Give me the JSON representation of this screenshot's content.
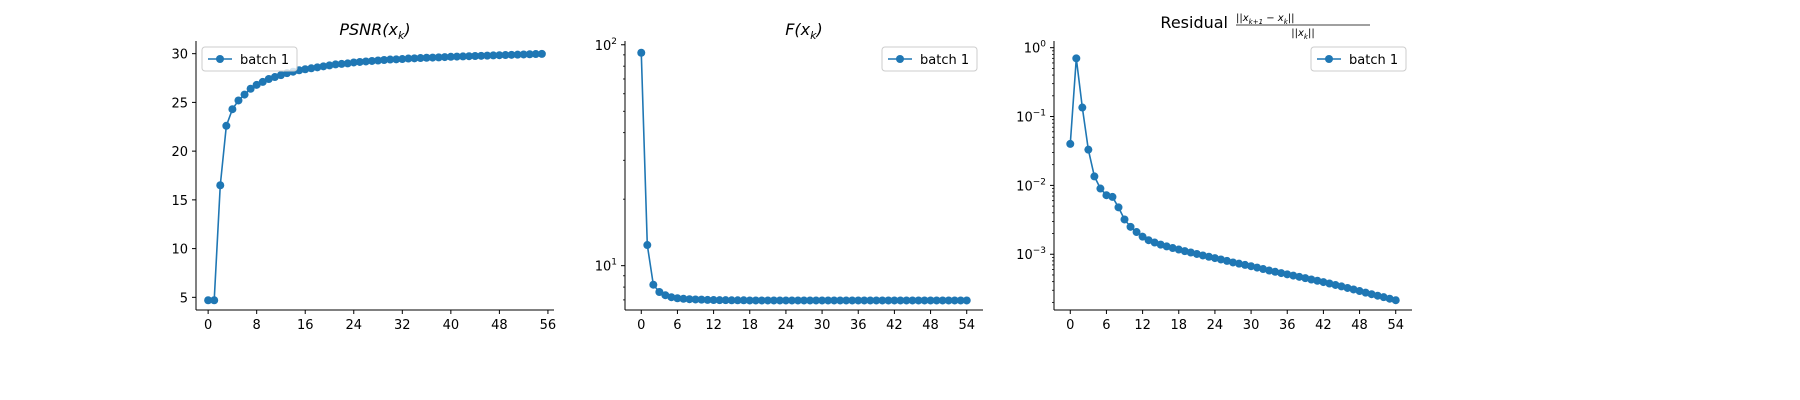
{
  "chart_data": [
    {
      "type": "line",
      "title": "PSNR(x_k)",
      "title_parts": {
        "main": "PSNR(x",
        "sub": "k",
        "close": ")"
      },
      "xlabel": "",
      "ylabel": "",
      "yscale": "linear",
      "xlim": [
        -2,
        57
      ],
      "ylim": [
        3.7,
        31.3
      ],
      "xticks": [
        0,
        8,
        16,
        24,
        32,
        40,
        48,
        56
      ],
      "yticks": [
        5,
        10,
        15,
        20,
        25,
        30
      ],
      "grid": false,
      "legend": {
        "position": "upper-left",
        "entries": [
          "batch 1"
        ]
      },
      "series": [
        {
          "name": "batch 1",
          "color": "#1f77b4",
          "x": [
            0,
            1,
            2,
            3,
            4,
            5,
            6,
            7,
            8,
            9,
            10,
            11,
            12,
            13,
            14,
            15,
            16,
            17,
            18,
            19,
            20,
            21,
            22,
            23,
            24,
            25,
            26,
            27,
            28,
            29,
            30,
            31,
            32,
            33,
            34,
            35,
            36,
            37,
            38,
            39,
            40,
            41,
            42,
            43,
            44,
            45,
            46,
            47,
            48,
            49,
            50,
            51,
            52,
            53,
            54,
            55
          ],
          "values": [
            4.7,
            4.7,
            16.5,
            22.6,
            24.3,
            25.2,
            25.8,
            26.4,
            26.8,
            27.1,
            27.4,
            27.6,
            27.8,
            28.0,
            28.15,
            28.3,
            28.4,
            28.5,
            28.6,
            28.7,
            28.8,
            28.9,
            28.95,
            29.0,
            29.1,
            29.15,
            29.2,
            29.25,
            29.3,
            29.35,
            29.4,
            29.42,
            29.45,
            29.5,
            29.52,
            29.55,
            29.58,
            29.6,
            29.62,
            29.65,
            29.68,
            29.7,
            29.72,
            29.74,
            29.76,
            29.78,
            29.8,
            29.82,
            29.84,
            29.86,
            29.88,
            29.9,
            29.92,
            29.94,
            29.96,
            29.98
          ]
        }
      ]
    },
    {
      "type": "line",
      "title": "F(x_k)",
      "title_parts": {
        "main": "F(x",
        "sub": "k",
        "close": ")"
      },
      "xlabel": "",
      "ylabel": "",
      "yscale": "log",
      "xlim": [
        -2.7,
        56.7
      ],
      "ylim": [
        6.3,
        104
      ],
      "xticks": [
        0,
        6,
        12,
        18,
        24,
        30,
        36,
        42,
        48,
        54
      ],
      "yticks_major": [
        {
          "value": 10,
          "base": "10",
          "exp": "1"
        },
        {
          "value": 100,
          "base": "10",
          "exp": "2"
        }
      ],
      "yticks_minor": [
        7,
        8,
        9,
        20,
        30,
        40,
        50,
        60,
        70,
        80,
        90
      ],
      "grid": false,
      "legend": {
        "position": "upper-right",
        "entries": [
          "batch 1"
        ]
      },
      "series": [
        {
          "name": "batch 1",
          "color": "#1f77b4",
          "x": [
            0,
            1,
            2,
            3,
            4,
            5,
            6,
            7,
            8,
            9,
            10,
            11,
            12,
            13,
            14,
            15,
            16,
            17,
            18,
            19,
            20,
            21,
            22,
            23,
            24,
            25,
            26,
            27,
            28,
            29,
            30,
            31,
            32,
            33,
            34,
            35,
            36,
            37,
            38,
            39,
            40,
            41,
            42,
            43,
            44,
            45,
            46,
            47,
            48,
            49,
            50,
            51,
            52,
            53,
            54
          ],
          "values": [
            92,
            12.4,
            8.2,
            7.6,
            7.35,
            7.2,
            7.12,
            7.08,
            7.05,
            7.03,
            7.02,
            7.0,
            6.99,
            6.98,
            6.98,
            6.97,
            6.97,
            6.97,
            6.96,
            6.96,
            6.96,
            6.96,
            6.96,
            6.96,
            6.96,
            6.96,
            6.96,
            6.96,
            6.96,
            6.96,
            6.96,
            6.96,
            6.96,
            6.96,
            6.96,
            6.96,
            6.96,
            6.96,
            6.96,
            6.96,
            6.96,
            6.96,
            6.96,
            6.96,
            6.96,
            6.96,
            6.96,
            6.96,
            6.96,
            6.96,
            6.96,
            6.96,
            6.96,
            6.96,
            6.96
          ]
        }
      ]
    },
    {
      "type": "line",
      "title": "Residual ||x_{k+1} - x_k|| / ||x_k||",
      "title_parts": {
        "word": "Residual",
        "num_a": "||x",
        "num_sub_a": "k+1",
        "num_mid": " − x",
        "num_sub_b": "k",
        "num_end": "||",
        "den_a": "||x",
        "den_sub": "k",
        "den_end": "||"
      },
      "xlabel": "",
      "ylabel": "",
      "yscale": "log",
      "xlim": [
        -2.7,
        56.7
      ],
      "ylim": [
        0.000155,
        1.25
      ],
      "xticks": [
        0,
        6,
        12,
        18,
        24,
        30,
        36,
        42,
        48,
        54
      ],
      "yticks_major": [
        {
          "value": 0.001,
          "base": "10",
          "exp": "−3"
        },
        {
          "value": 0.01,
          "base": "10",
          "exp": "−2"
        },
        {
          "value": 0.1,
          "base": "10",
          "exp": "−1"
        },
        {
          "value": 1,
          "base": "10",
          "exp": "0"
        }
      ],
      "grid": false,
      "legend": {
        "position": "upper-right",
        "entries": [
          "batch 1"
        ]
      },
      "series": [
        {
          "name": "batch 1",
          "color": "#1f77b4",
          "x": [
            0,
            1,
            2,
            3,
            4,
            5,
            6,
            7,
            8,
            9,
            10,
            11,
            12,
            13,
            14,
            15,
            16,
            17,
            18,
            19,
            20,
            21,
            22,
            23,
            24,
            25,
            26,
            27,
            28,
            29,
            30,
            31,
            32,
            33,
            34,
            35,
            36,
            37,
            38,
            39,
            40,
            41,
            42,
            43,
            44,
            45,
            46,
            47,
            48,
            49,
            50,
            51,
            52,
            53,
            54
          ],
          "values": [
            0.04,
            0.7,
            0.135,
            0.033,
            0.0135,
            0.009,
            0.0072,
            0.0068,
            0.0048,
            0.0032,
            0.0025,
            0.0021,
            0.0018,
            0.0016,
            0.00148,
            0.00138,
            0.0013,
            0.00123,
            0.00117,
            0.00111,
            0.00106,
            0.00101,
            0.00096,
            0.00092,
            0.00088,
            0.00084,
            0.0008,
            0.00076,
            0.00073,
            0.0007,
            0.00067,
            0.00064,
            0.00061,
            0.00058,
            0.000556,
            0.000533,
            0.000511,
            0.00049,
            0.00047,
            0.00045,
            0.00043,
            0.000412,
            0.000394,
            0.000376,
            0.000358,
            0.000341,
            0.000324,
            0.000308,
            0.000292,
            0.000277,
            0.000263,
            0.00025,
            0.000238,
            0.000226,
            0.000215
          ]
        }
      ]
    }
  ]
}
